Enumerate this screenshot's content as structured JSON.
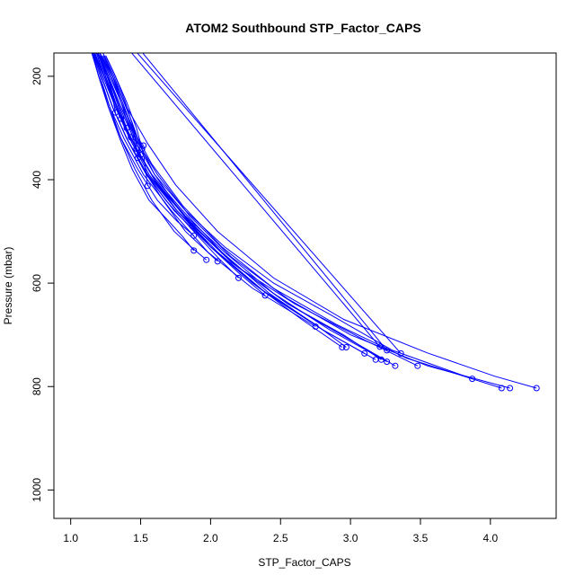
{
  "chart_data": {
    "type": "line",
    "title": "ATOM2 Southbound STP_Factor_CAPS",
    "xlabel": "STP_Factor_CAPS",
    "ylabel": "Pressure (mbar)",
    "xlim": [
      0.88,
      4.47
    ],
    "ylim": [
      1055,
      155
    ],
    "y_reversed": true,
    "xticks": [
      1.0,
      1.5,
      2.0,
      2.5,
      3.0,
      3.5,
      4.0
    ],
    "xtick_labels": [
      "1.0",
      "1.5",
      "2.0",
      "2.5",
      "3.0",
      "3.5",
      "4.0"
    ],
    "yticks": [
      200,
      400,
      600,
      800,
      1000
    ],
    "ytick_labels": [
      "200",
      "400",
      "600",
      "800",
      "1000"
    ],
    "color": "#0000ff",
    "grid": false,
    "series": [
      {
        "x": [
          1.16,
          1.26,
          1.35,
          1.45,
          1.6,
          1.82,
          2.1,
          2.45,
          2.85,
          3.3,
          3.87
        ],
        "y": [
          135,
          200,
          260,
          320,
          390,
          460,
          530,
          600,
          660,
          730,
          785
        ]
      },
      {
        "x": [
          1.18,
          1.28,
          1.36,
          1.44,
          1.58,
          1.8,
          2.08,
          2.45,
          2.9,
          3.4,
          4.08
        ],
        "y": [
          135,
          200,
          250,
          300,
          370,
          450,
          530,
          610,
          680,
          745,
          803
        ]
      },
      {
        "x": [
          1.17,
          1.26,
          1.36,
          1.46,
          1.62,
          1.85,
          2.15,
          2.55,
          3.0,
          3.55,
          4.14
        ],
        "y": [
          135,
          200,
          260,
          320,
          390,
          470,
          550,
          630,
          700,
          760,
          803
        ]
      },
      {
        "x": [
          1.2,
          1.3,
          1.4,
          1.55,
          1.75,
          2.05,
          2.45,
          2.95,
          3.55,
          4.03,
          4.33
        ],
        "y": [
          135,
          200,
          260,
          330,
          410,
          500,
          590,
          670,
          735,
          780,
          803
        ]
      },
      {
        "x": [
          1.15,
          1.23,
          1.32,
          1.45,
          1.62,
          1.88,
          2.2,
          2.6,
          3.1,
          3.48
        ],
        "y": [
          135,
          200,
          260,
          330,
          410,
          490,
          570,
          640,
          710,
          760
        ]
      },
      {
        "x": [
          1.16,
          1.24,
          1.33,
          1.45,
          1.62,
          1.85,
          2.15,
          2.55,
          3.0,
          3.32
        ],
        "y": [
          135,
          200,
          260,
          330,
          410,
          480,
          560,
          640,
          710,
          760
        ]
      },
      {
        "x": [
          1.17,
          1.25,
          1.33,
          1.45,
          1.6,
          1.82,
          2.1,
          2.45,
          2.85,
          3.26
        ],
        "y": [
          135,
          200,
          260,
          330,
          400,
          470,
          540,
          620,
          690,
          752
        ]
      },
      {
        "x": [
          1.16,
          1.24,
          1.33,
          1.44,
          1.6,
          1.84,
          2.15,
          2.55,
          2.95,
          3.22
        ],
        "y": [
          135,
          200,
          260,
          330,
          400,
          480,
          560,
          640,
          700,
          748
        ]
      },
      {
        "x": [
          1.17,
          1.25,
          1.33,
          1.43,
          1.58,
          1.8,
          2.08,
          2.42,
          2.8,
          3.18
        ],
        "y": [
          135,
          200,
          260,
          320,
          390,
          460,
          540,
          620,
          690,
          748
        ]
      },
      {
        "x": [
          1.14,
          1.22,
          1.3,
          1.4,
          1.55,
          1.76,
          2.05,
          2.4,
          2.8,
          3.1
        ],
        "y": [
          135,
          200,
          260,
          320,
          390,
          460,
          540,
          620,
          690,
          736
        ]
      },
      {
        "x": [
          1.16,
          1.24,
          1.32,
          1.42,
          1.56,
          1.76,
          2.0,
          2.35,
          2.75,
          2.97
        ],
        "y": [
          135,
          200,
          260,
          320,
          390,
          460,
          530,
          610,
          680,
          724
        ]
      },
      {
        "x": [
          1.15,
          1.22,
          1.3,
          1.4,
          1.54,
          1.74,
          2.0,
          2.3,
          2.65,
          2.94
        ],
        "y": [
          135,
          200,
          260,
          320,
          390,
          460,
          530,
          600,
          670,
          724
        ]
      },
      {
        "x": [
          1.13,
          1.2,
          1.28,
          1.38,
          1.52,
          1.72,
          1.98,
          2.3,
          2.75
        ],
        "y": [
          135,
          200,
          260,
          320,
          390,
          460,
          540,
          610,
          684
        ]
      },
      {
        "x": [
          1.18,
          1.27,
          1.36,
          1.47,
          1.6,
          1.78,
          2.0,
          2.2,
          2.39
        ],
        "y": [
          135,
          200,
          260,
          320,
          390,
          460,
          530,
          580,
          624
        ]
      },
      {
        "x": [
          1.15,
          1.22,
          1.3,
          1.4,
          1.52,
          1.68,
          1.88,
          2.05,
          2.2
        ],
        "y": [
          135,
          200,
          260,
          320,
          380,
          440,
          500,
          550,
          590
        ]
      },
      {
        "x": [
          1.14,
          1.21,
          1.28,
          1.36,
          1.46,
          1.58,
          1.74,
          1.86,
          1.97
        ],
        "y": [
          135,
          200,
          260,
          320,
          380,
          440,
          500,
          530,
          555
        ]
      },
      {
        "x": [
          1.13,
          1.2,
          1.27,
          1.35,
          1.44,
          1.56,
          1.7,
          1.8,
          1.88
        ],
        "y": [
          135,
          200,
          260,
          320,
          380,
          440,
          480,
          510,
          537
        ]
      },
      {
        "x": [
          1.15,
          1.22,
          1.3,
          1.4,
          1.52,
          1.66,
          1.82,
          2.05
        ],
        "y": [
          135,
          200,
          260,
          320,
          380,
          440,
          500,
          558
        ]
      },
      {
        "x": [
          1.14,
          1.2,
          1.27,
          1.36,
          1.48,
          1.62,
          1.76,
          1.88
        ],
        "y": [
          135,
          200,
          260,
          320,
          380,
          440,
          480,
          508
        ]
      },
      {
        "x": [
          1.16,
          1.24,
          1.33,
          1.45,
          1.6,
          1.76,
          1.87
        ],
        "y": [
          135,
          200,
          260,
          330,
          400,
          460,
          490
        ]
      },
      {
        "x": [
          1.2,
          1.27,
          1.33,
          1.4
        ],
        "y": [
          160,
          200,
          250,
          300
        ]
      },
      {
        "x": [
          1.22,
          1.3,
          1.36,
          1.42,
          1.47
        ],
        "y": [
          160,
          200,
          250,
          300,
          340
        ]
      },
      {
        "x": [
          1.25,
          1.32,
          1.4,
          1.47,
          1.52,
          1.55
        ],
        "y": [
          160,
          200,
          250,
          300,
          350,
          412
        ]
      },
      {
        "x": [
          1.2,
          1.26,
          1.32,
          1.38,
          1.43
        ],
        "y": [
          160,
          200,
          250,
          290,
          318
        ]
      },
      {
        "x": [
          1.18,
          1.24,
          1.29,
          1.33,
          1.36
        ],
        "y": [
          160,
          200,
          235,
          260,
          282
        ]
      },
      {
        "x": [
          1.21,
          1.27,
          1.32
        ],
        "y": [
          160,
          200,
          270
        ]
      },
      {
        "x": [
          1.23,
          1.3,
          1.37,
          1.44,
          1.5
        ],
        "y": [
          160,
          200,
          250,
          300,
          352
        ]
      },
      {
        "x": [
          1.24,
          1.31,
          1.38,
          1.44,
          1.48,
          1.51
        ],
        "y": [
          160,
          200,
          250,
          290,
          320,
          340
        ]
      },
      {
        "x": [
          1.22,
          1.29,
          1.36,
          1.43,
          1.48,
          1.52
        ],
        "y": [
          160,
          200,
          250,
          290,
          320,
          334
        ]
      },
      {
        "x": [
          1.25,
          1.32,
          1.39,
          1.45,
          1.48
        ],
        "y": [
          160,
          200,
          250,
          300,
          358
        ]
      },
      {
        "x": [
          1.5,
          3.26
        ],
        "y": [
          150,
          730
        ]
      },
      {
        "x": [
          1.46,
          3.36
        ],
        "y": [
          150,
          736
        ]
      },
      {
        "x": [
          1.42,
          3.21
        ],
        "y": [
          150,
          723
        ]
      }
    ]
  }
}
